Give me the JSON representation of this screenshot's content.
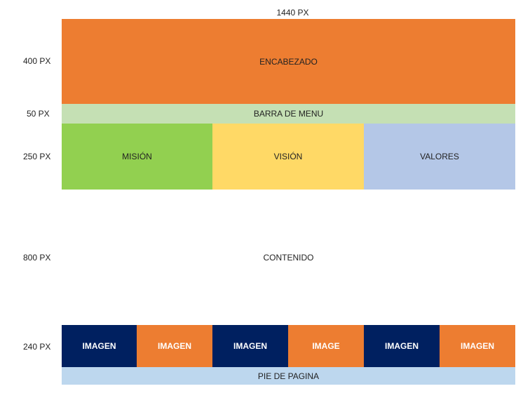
{
  "width_label": "1440 PX",
  "rows": {
    "header": {
      "size": "400 PX",
      "label": "ENCABEZADO",
      "color": "#ED7D31"
    },
    "menu": {
      "size": "50 PX",
      "label": "BARRA DE MENU",
      "color": "#C5E0B4"
    },
    "mvv": {
      "size": "250 PX",
      "blocks": [
        {
          "label": "MISIÓN",
          "color": "#92D050"
        },
        {
          "label": "VISIÓN",
          "color": "#FFD966"
        },
        {
          "label": "VALORES",
          "color": "#B4C7E7"
        }
      ]
    },
    "content": {
      "size": "800 PX",
      "label": "CONTENIDO"
    },
    "images": {
      "size": "240 PX",
      "blocks": [
        {
          "label": "IMAGEN",
          "color": "#002060"
        },
        {
          "label": "IMAGEN",
          "color": "#ED7D31"
        },
        {
          "label": "IMAGEN",
          "color": "#002060"
        },
        {
          "label": "IMAGE",
          "color": "#ED7D31"
        },
        {
          "label": "IMAGEN",
          "color": "#002060"
        },
        {
          "label": "IMAGEN",
          "color": "#ED7D31"
        }
      ]
    },
    "footer": {
      "label": "PIE DE PAGINA",
      "color": "#BDD7EE"
    }
  }
}
